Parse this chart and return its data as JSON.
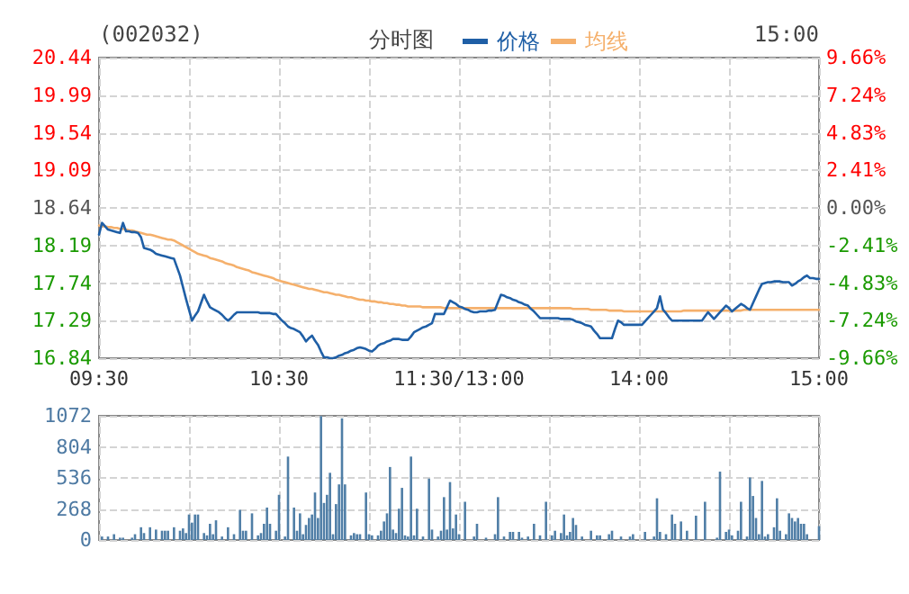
{
  "chart_data": [
    {
      "type": "line",
      "title": "分时图",
      "subtitle": "(002032)",
      "annotations": [
        "15:00"
      ],
      "categories": [
        "09:30",
        null,
        null,
        null,
        null,
        null,
        null,
        null,
        null,
        null,
        null,
        null,
        null,
        null,
        null,
        null,
        null,
        null,
        null,
        null,
        null,
        null,
        null,
        null,
        null,
        null,
        null,
        null,
        null,
        null,
        null,
        null,
        null,
        null,
        null,
        null,
        null,
        null,
        null,
        null,
        null,
        null,
        null,
        null,
        null,
        null,
        null,
        null,
        null,
        null,
        null,
        null,
        null,
        null,
        null,
        null,
        null,
        null,
        null,
        null,
        "10:30",
        null,
        null,
        null,
        null,
        null,
        null,
        null,
        null,
        null,
        null,
        null,
        null,
        null,
        null,
        null,
        null,
        null,
        null,
        null,
        null,
        null,
        null,
        null,
        null,
        null,
        null,
        null,
        null,
        null,
        null,
        null,
        null,
        null,
        null,
        null,
        null,
        null,
        null,
        null,
        null,
        null,
        null,
        null,
        null,
        null,
        null,
        null,
        null,
        null,
        null,
        null,
        null,
        null,
        null,
        null,
        null,
        null,
        null,
        null,
        "11:30/13:00",
        null,
        null,
        null,
        null,
        null,
        null,
        null,
        null,
        null,
        null,
        null,
        null,
        null,
        null,
        null,
        null,
        null,
        null,
        null,
        null,
        null,
        null,
        null,
        null,
        null,
        null,
        null,
        null,
        null,
        null,
        null,
        null,
        null,
        null,
        null,
        null,
        null,
        null,
        null,
        null,
        null,
        null,
        null,
        null,
        null,
        null,
        null,
        null,
        null,
        null,
        null,
        null,
        null,
        null,
        null,
        null,
        null,
        null,
        null,
        "14:00",
        null,
        null,
        null,
        null,
        null,
        null,
        null,
        null,
        null,
        null,
        null,
        null,
        null,
        null,
        null,
        null,
        null,
        null,
        null,
        null,
        null,
        null,
        null,
        null,
        null,
        null,
        null,
        null,
        null,
        null,
        null,
        null,
        null,
        null,
        null,
        null,
        null,
        null,
        null,
        null,
        null,
        null,
        null,
        null,
        null,
        null,
        null,
        null,
        null,
        null,
        null,
        null,
        null,
        null,
        null,
        null,
        null,
        null,
        null,
        "15:00"
      ],
      "series": [
        {
          "name": "价格",
          "color": "#1f5fa6",
          "values": [
            18.32,
            18.46,
            18.42,
            18.38,
            18.37,
            18.36,
            18.35,
            18.34,
            18.46,
            18.36,
            18.36,
            18.35,
            18.35,
            18.34,
            18.29,
            18.16,
            18.15,
            18.14,
            18.12,
            18.09,
            18.08,
            18.07,
            18.06,
            18.05,
            18.04,
            18.03,
            17.93,
            17.83,
            17.69,
            17.55,
            17.42,
            17.29,
            17.35,
            17.4,
            17.5,
            17.6,
            17.52,
            17.45,
            17.43,
            17.41,
            17.39,
            17.36,
            17.32,
            17.29,
            17.32,
            17.36,
            17.39,
            17.39,
            17.39,
            17.39,
            17.39,
            17.39,
            17.39,
            17.39,
            17.38,
            17.38,
            17.38,
            17.38,
            17.37,
            17.37,
            17.33,
            17.29,
            17.26,
            17.22,
            17.2,
            17.19,
            17.17,
            17.15,
            17.1,
            17.04,
            17.08,
            17.11,
            17.05,
            17.0,
            16.92,
            16.85,
            16.85,
            16.84,
            16.84,
            16.85,
            16.87,
            16.88,
            16.9,
            16.91,
            16.93,
            16.94,
            16.96,
            16.97,
            16.96,
            16.95,
            16.93,
            16.92,
            16.95,
            16.99,
            17.01,
            17.02,
            17.04,
            17.05,
            17.07,
            17.07,
            17.07,
            17.06,
            17.06,
            17.06,
            17.1,
            17.15,
            17.17,
            17.19,
            17.21,
            17.22,
            17.24,
            17.26,
            17.37,
            17.37,
            17.37,
            17.37,
            17.45,
            17.53,
            17.51,
            17.49,
            17.46,
            17.45,
            17.43,
            17.42,
            17.4,
            17.39,
            17.39,
            17.4,
            17.4,
            17.4,
            17.41,
            17.41,
            17.42,
            17.51,
            17.6,
            17.59,
            17.57,
            17.56,
            17.54,
            17.53,
            17.51,
            17.5,
            17.48,
            17.47,
            17.43,
            17.4,
            17.36,
            17.32,
            17.32,
            17.32,
            17.32,
            17.32,
            17.32,
            17.32,
            17.31,
            17.31,
            17.31,
            17.31,
            17.3,
            17.28,
            17.27,
            17.26,
            17.24,
            17.23,
            17.22,
            17.17,
            17.13,
            17.08,
            17.08,
            17.08,
            17.08,
            17.08,
            17.19,
            17.29,
            17.27,
            17.24,
            17.24,
            17.24,
            17.24,
            17.24,
            17.24,
            17.24,
            17.28,
            17.32,
            17.36,
            17.4,
            17.44,
            17.58,
            17.42,
            17.38,
            17.33,
            17.29,
            17.29,
            17.29,
            17.29,
            17.29,
            17.29,
            17.29,
            17.29,
            17.29,
            17.29,
            17.29,
            17.34,
            17.39,
            17.35,
            17.31,
            17.35,
            17.39,
            17.43,
            17.47,
            17.44,
            17.4,
            17.43,
            17.46,
            17.49,
            17.47,
            17.44,
            17.42,
            17.5,
            17.58,
            17.66,
            17.73,
            17.74,
            17.75,
            17.75,
            17.76,
            17.76,
            17.76,
            17.75,
            17.75,
            17.75,
            17.71,
            17.73,
            17.76,
            17.78,
            17.81,
            17.83,
            17.8,
            17.8,
            17.79,
            17.79
          ]
        },
        {
          "name": "均线",
          "color": "#f5b06c",
          "values": [
            18.43,
            18.42,
            18.42,
            18.41,
            18.41,
            18.4,
            18.4,
            18.39,
            18.39,
            18.38,
            18.37,
            18.37,
            18.36,
            18.35,
            18.34,
            18.33,
            18.32,
            18.32,
            18.31,
            18.3,
            18.29,
            18.28,
            18.27,
            18.26,
            18.26,
            18.25,
            18.23,
            18.21,
            18.19,
            18.17,
            18.15,
            18.13,
            18.11,
            18.09,
            18.08,
            18.07,
            18.06,
            18.04,
            18.03,
            18.02,
            18.01,
            18.0,
            17.98,
            17.97,
            17.96,
            17.95,
            17.93,
            17.92,
            17.91,
            17.9,
            17.89,
            17.87,
            17.86,
            17.85,
            17.84,
            17.83,
            17.82,
            17.81,
            17.8,
            17.78,
            17.77,
            17.76,
            17.75,
            17.74,
            17.73,
            17.72,
            17.71,
            17.7,
            17.69,
            17.68,
            17.67,
            17.67,
            17.66,
            17.65,
            17.64,
            17.63,
            17.63,
            17.62,
            17.61,
            17.6,
            17.6,
            17.59,
            17.58,
            17.57,
            17.57,
            17.56,
            17.55,
            17.54,
            17.54,
            17.53,
            17.53,
            17.52,
            17.52,
            17.51,
            17.51,
            17.5,
            17.5,
            17.49,
            17.49,
            17.48,
            17.48,
            17.47,
            17.47,
            17.46,
            17.46,
            17.46,
            17.46,
            17.46,
            17.45,
            17.45,
            17.45,
            17.45,
            17.45,
            17.45,
            17.45,
            17.44,
            17.44,
            17.44,
            17.44,
            17.44,
            17.44,
            17.44,
            17.44,
            17.44,
            17.44,
            17.44,
            17.44,
            17.44,
            17.44,
            17.44,
            17.44,
            17.44,
            17.44,
            17.44,
            17.44,
            17.44,
            17.44,
            17.44,
            17.44,
            17.44,
            17.44,
            17.44,
            17.44,
            17.44,
            17.44,
            17.44,
            17.44,
            17.44,
            17.44,
            17.44,
            17.44,
            17.44,
            17.44,
            17.44,
            17.44,
            17.44,
            17.44,
            17.44,
            17.43,
            17.43,
            17.43,
            17.43,
            17.43,
            17.43,
            17.42,
            17.42,
            17.42,
            17.42,
            17.42,
            17.42,
            17.41,
            17.41,
            17.41,
            17.41,
            17.41,
            17.4,
            17.4,
            17.4,
            17.4,
            17.4,
            17.4,
            17.4,
            17.4,
            17.4,
            17.4,
            17.4,
            17.4,
            17.4,
            17.4,
            17.4,
            17.4,
            17.4,
            17.4,
            17.4,
            17.4,
            17.41,
            17.41,
            17.41,
            17.41,
            17.41,
            17.41,
            17.41,
            17.41,
            17.41,
            17.41,
            17.41,
            17.41,
            17.41,
            17.41,
            17.41,
            17.41,
            17.41,
            17.41,
            17.41,
            17.41,
            17.42,
            17.42,
            17.42,
            17.42,
            17.42,
            17.42,
            17.42,
            17.42,
            17.42,
            17.42,
            17.42,
            17.42,
            17.42,
            17.42,
            17.42,
            17.42,
            17.42,
            17.42,
            17.42,
            17.42,
            17.42,
            17.42,
            17.42,
            17.42,
            17.42,
            17.42
          ]
        }
      ],
      "ylim": [
        16.84,
        20.44
      ],
      "yticks": [
        16.84,
        17.29,
        17.74,
        18.19,
        18.64,
        19.09,
        19.54,
        19.99,
        20.44
      ],
      "y2lim": [
        -9.66,
        9.66
      ],
      "y2ticks": [
        {
          "value": -9.66,
          "label": "-9.66%"
        },
        {
          "value": -7.24,
          "label": "-7.24%"
        },
        {
          "value": -4.83,
          "label": "-4.83%"
        },
        {
          "value": -2.41,
          "label": "-2.41%"
        },
        {
          "value": 0,
          "label": "0.00%"
        },
        {
          "value": 2.41,
          "label": "2.41%"
        },
        {
          "value": 4.83,
          "label": "4.83%"
        },
        {
          "value": 7.24,
          "label": "7.24%"
        },
        {
          "value": 9.66,
          "label": "9.66%"
        }
      ],
      "grid": true,
      "legend": "top",
      "marker": "none",
      "line_style": "solid"
    },
    {
      "type": "bar",
      "color": "#4f7ea6",
      "categories": [
        null,
        null,
        null,
        null,
        null,
        null,
        null,
        null,
        null,
        null,
        null,
        null,
        null,
        null,
        null,
        null,
        null,
        null,
        null,
        null,
        null,
        null,
        null,
        null,
        null,
        null,
        null,
        null,
        null,
        null,
        null,
        null,
        null,
        null,
        null,
        null,
        null,
        null,
        null,
        null,
        null,
        null,
        null,
        null,
        null,
        null,
        null,
        null,
        null,
        null,
        null,
        null,
        null,
        null,
        null,
        null,
        null,
        null,
        null,
        null,
        null,
        null,
        null,
        null,
        null,
        null,
        null,
        null,
        null,
        null,
        null,
        null,
        null,
        null,
        null,
        null,
        null,
        null,
        null,
        null,
        null,
        null,
        null,
        null,
        null,
        null,
        null,
        null,
        null,
        null,
        null,
        null,
        null,
        null,
        null,
        null,
        null,
        null,
        null,
        null,
        null,
        null,
        null,
        null,
        null,
        null,
        null,
        null,
        null,
        null,
        null,
        null,
        null,
        null,
        null,
        null,
        null,
        null,
        null,
        null,
        null,
        null,
        null,
        null,
        null,
        null,
        null,
        null,
        null,
        null,
        null,
        null,
        null,
        null,
        null,
        null,
        null,
        null,
        null,
        null,
        null,
        null,
        null,
        null,
        null,
        null,
        null,
        null,
        null,
        null,
        null,
        null,
        null,
        null,
        null,
        null,
        null,
        null,
        null,
        null,
        null,
        null,
        null,
        null,
        null,
        null,
        null,
        null,
        null,
        null,
        null,
        null,
        null,
        null,
        null,
        null,
        null,
        null,
        null,
        null,
        null,
        null,
        null,
        null,
        null,
        null,
        null,
        null,
        null,
        null,
        null,
        null,
        null,
        null,
        null,
        null,
        null,
        null,
        null,
        null,
        null,
        null,
        null,
        null,
        null,
        null,
        null,
        null,
        null,
        null,
        null,
        null,
        null,
        null,
        null,
        null,
        null,
        null,
        null,
        null,
        null,
        null,
        null,
        null,
        null,
        null,
        null,
        null,
        null,
        null,
        null,
        null,
        null,
        null,
        null,
        null,
        null,
        null,
        null,
        null,
        null
      ],
      "values": [
        null,
        30,
        null,
        30,
        null,
        50,
        null,
        20,
        20,
        null,
        null,
        20,
        50,
        null,
        110,
        60,
        null,
        110,
        null,
        90,
        null,
        80,
        80,
        80,
        null,
        110,
        null,
        80,
        100,
        60,
        220,
        150,
        220,
        220,
        null,
        60,
        40,
        140,
        50,
        170,
        null,
        30,
        null,
        110,
        null,
        50,
        null,
        260,
        80,
        80,
        null,
        230,
        null,
        40,
        60,
        140,
        280,
        140,
        null,
        80,
        390,
        null,
        30,
        720,
        null,
        280,
        80,
        230,
        50,
        130,
        190,
        220,
        410,
        190,
        1070,
        320,
        390,
        580,
        50,
        310,
        480,
        1050,
        480,
        null,
        40,
        60,
        50,
        50,
        null,
        410,
        50,
        40,
        null,
        40,
        80,
        160,
        230,
        630,
        90,
        60,
        270,
        450,
        40,
        30,
        720,
        40,
        270,
        null,
        30,
        null,
        530,
        90,
        null,
        30,
        80,
        370,
        90,
        500,
        100,
        220,
        50,
        null,
        330,
        null,
        null,
        30,
        140,
        null,
        null,
        20,
        null,
        null,
        50,
        370,
        null,
        30,
        null,
        70,
        70,
        null,
        70,
        20,
        null,
        30,
        null,
        140,
        null,
        40,
        null,
        330,
        null,
        40,
        80,
        null,
        60,
        220,
        40,
        70,
        190,
        130,
        null,
        30,
        null,
        null,
        80,
        null,
        40,
        40,
        null,
        null,
        50,
        80,
        null,
        null,
        30,
        null,
        null,
        30,
        50,
        null,
        null,
        null,
        70,
        null,
        null,
        30,
        360,
        70,
        null,
        50,
        null,
        220,
        140,
        null,
        160,
        null,
        80,
        null,
        null,
        210,
        null,
        null,
        330,
        null,
        null,
        null,
        20,
        590,
        null,
        70,
        90,
        40,
        null,
        80,
        330,
        null,
        30,
        540,
        380,
        190,
        50,
        510,
        30,
        50,
        null,
        110,
        360,
        80,
        null,
        50,
        230,
        190,
        160,
        190,
        140,
        140,
        50,
        null,
        null,
        null,
        120
      ],
      "ylim": [
        0,
        1072
      ],
      "yticks": [
        0,
        268,
        536,
        804,
        1072
      ],
      "grid": true,
      "tick_labels": "y"
    }
  ]
}
